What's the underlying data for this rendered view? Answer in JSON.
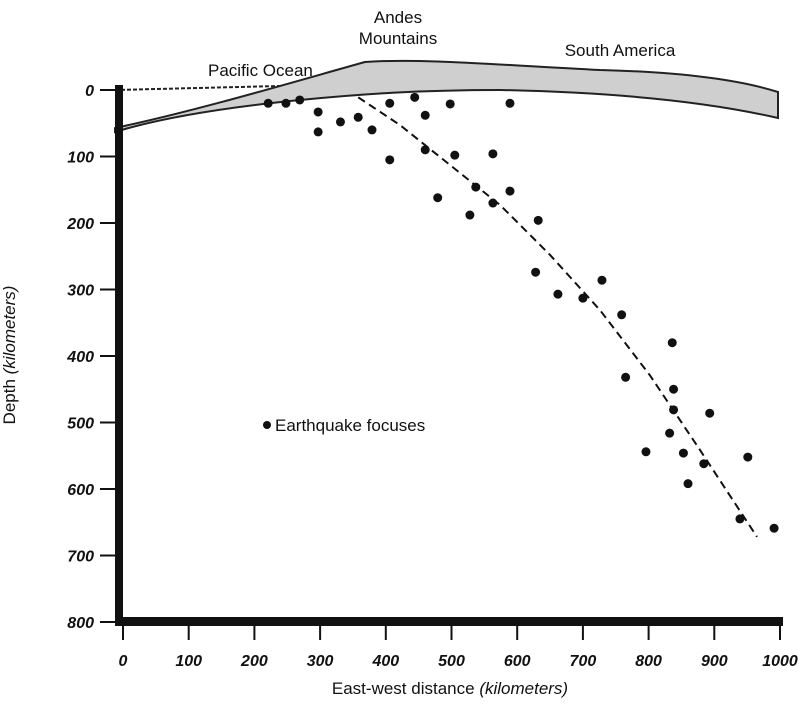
{
  "chart_data": {
    "type": "scatter",
    "ylabel": {
      "text": "Depth",
      "unit": "(kilometers)"
    },
    "xlabel": {
      "text": "East-west distance",
      "unit": "(kilometers)"
    },
    "annotations": [
      "Pacific Ocean",
      "Andes",
      "Mountains",
      "South America"
    ],
    "series": [
      {
        "name": "Earthquake focuses",
        "color": "#111111",
        "x": [
          221,
          248,
          269,
          297,
          297,
          331,
          358,
          379,
          406,
          406,
          444,
          460,
          460,
          498,
          505,
          479,
          528,
          537,
          563,
          563,
          589,
          589,
          632,
          628,
          662,
          700,
          729,
          759,
          765,
          836,
          838,
          838,
          796,
          832,
          853,
          860,
          884,
          893,
          951,
          939,
          991
        ],
        "values": [
          20,
          20,
          15,
          33,
          63,
          48,
          41,
          60,
          20,
          105,
          11,
          38,
          90,
          21,
          98,
          162,
          188,
          146,
          96,
          170,
          20,
          152,
          196,
          274,
          307,
          313,
          286,
          338,
          432,
          380,
          450,
          481,
          544,
          516,
          546,
          592,
          562,
          486,
          552,
          645,
          659
        ]
      }
    ],
    "curve": {
      "x": [
        358,
        422,
        498,
        574,
        650,
        726,
        802,
        878,
        965
      ],
      "y": [
        11,
        53,
        113,
        173,
        248,
        331,
        429,
        541,
        672
      ]
    },
    "xlim": [
      0,
      1000
    ],
    "ylim": [
      0,
      800
    ],
    "y_inverted": true,
    "xticks": [
      0,
      100,
      200,
      300,
      400,
      500,
      600,
      700,
      800,
      900,
      1000
    ],
    "yticks": [
      0,
      100,
      200,
      300,
      400,
      500,
      600,
      700,
      800
    ]
  }
}
